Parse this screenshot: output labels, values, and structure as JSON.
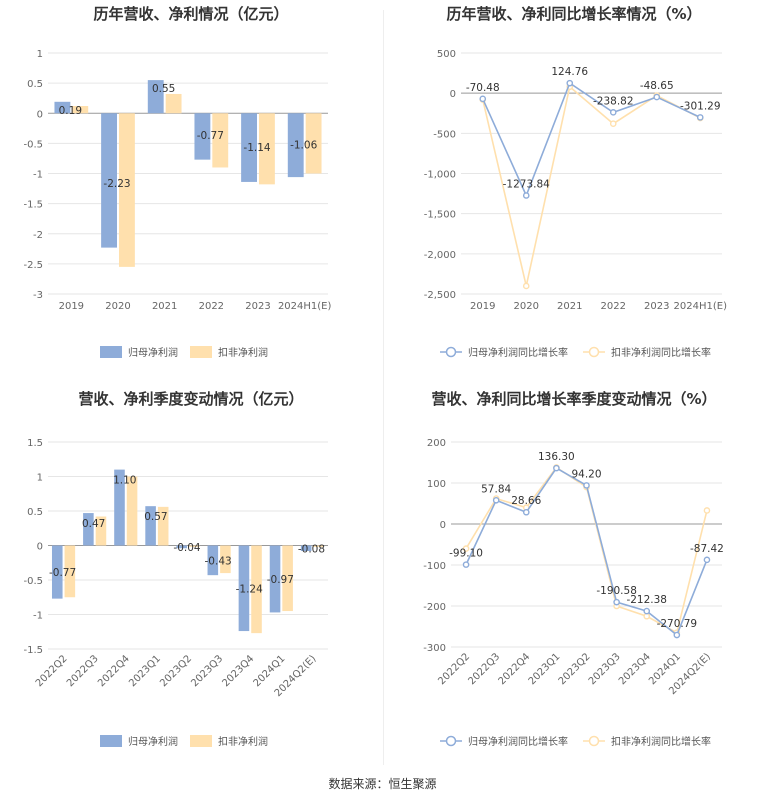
{
  "source": "数据来源：恒生聚源",
  "chart_data": [
    {
      "type": "bar",
      "title": "历年营收、净利情况（亿元）",
      "categories": [
        "2019",
        "2020",
        "2021",
        "2022",
        "2023",
        "2024H1(E)"
      ],
      "series": [
        {
          "name": "归母净利润",
          "values": [
            0.19,
            -2.23,
            0.55,
            -0.77,
            -1.14,
            -1.06
          ],
          "color": "#8eacd9",
          "labels": [
            "0.19",
            "-2.23",
            "0.55",
            "-0.77",
            "-1.14",
            "-1.06"
          ]
        },
        {
          "name": "扣非净利润",
          "values": [
            0.12,
            -2.55,
            0.32,
            -0.9,
            -1.18,
            -1.0
          ],
          "color": "#ffe0ad"
        }
      ],
      "ylim": [
        -3,
        1
      ],
      "yticks": [
        1,
        0.5,
        0,
        -0.5,
        -1,
        -1.5,
        -2,
        -2.5,
        -3
      ],
      "ytick_labels": [
        "1",
        "0.5",
        "0",
        "-0.5",
        "-1",
        "-1.5",
        "-2",
        "-2.5",
        "-3"
      ],
      "legend": "bottom",
      "grid": true
    },
    {
      "type": "line",
      "title": "历年营收、净利同比增长率情况（%）",
      "categories": [
        "2019",
        "2020",
        "2021",
        "2022",
        "2023",
        "2024H1(E)"
      ],
      "series": [
        {
          "name": "归母净利润同比增长率",
          "values": [
            -70.48,
            -1273.84,
            124.76,
            -238.82,
            -48.65,
            -301.29
          ],
          "color": "#8eacd9",
          "labels": [
            "-70.48",
            "-1273.84",
            "124.76",
            "-238.82",
            "-48.65",
            "-301.29"
          ]
        },
        {
          "name": "扣非净利润同比增长率",
          "values": [
            -80,
            -2400,
            80,
            -380,
            -30,
            -310
          ],
          "color": "#ffe0ad"
        }
      ],
      "ylim": [
        -2500,
        500
      ],
      "yticks": [
        500,
        0,
        -500,
        -1000,
        -1500,
        -2000,
        -2500
      ],
      "ytick_labels": [
        "500",
        "0",
        "-500",
        "-1,000",
        "-1,500",
        "-2,000",
        "-2,500"
      ],
      "legend": "bottom",
      "grid": true
    },
    {
      "type": "bar",
      "title": "营收、净利季度变动情况（亿元）",
      "categories": [
        "2022Q2",
        "2022Q3",
        "2022Q4",
        "2023Q1",
        "2023Q2",
        "2023Q3",
        "2023Q4",
        "2024Q1",
        "2024Q2(E)"
      ],
      "series": [
        {
          "name": "归母净利润",
          "values": [
            -0.77,
            0.47,
            1.1,
            0.57,
            -0.04,
            -0.43,
            -1.24,
            -0.97,
            -0.08
          ],
          "color": "#8eacd9",
          "labels": [
            "-0.77",
            "0.47",
            "1.10",
            "0.57",
            "-0.04",
            "-0.43",
            "-1.24",
            "-0.97",
            "-0.08"
          ]
        },
        {
          "name": "扣非净利润",
          "values": [
            -0.75,
            0.42,
            1.0,
            0.56,
            -0.02,
            -0.4,
            -1.27,
            -0.95,
            -0.02
          ],
          "color": "#ffe0ad"
        }
      ],
      "ylim": [
        -1.5,
        1.5
      ],
      "yticks": [
        1.5,
        1,
        0.5,
        0,
        -0.5,
        -1,
        -1.5
      ],
      "ytick_labels": [
        "1.5",
        "1",
        "0.5",
        "0",
        "-0.5",
        "-1",
        "-1.5"
      ],
      "legend": "bottom",
      "grid": true
    },
    {
      "type": "line",
      "title": "营收、净利同比增长率季度变动情况（%）",
      "categories": [
        "2022Q2",
        "2022Q3",
        "2022Q4",
        "2023Q1",
        "2023Q2",
        "2023Q3",
        "2023Q4",
        "2024Q1",
        "2024Q2(E)"
      ],
      "series": [
        {
          "name": "归母净利润同比增长率",
          "values": [
            -99.1,
            57.84,
            28.66,
            136.3,
            94.2,
            -190.58,
            -212.38,
            -270.79,
            -87.42
          ],
          "color": "#8eacd9",
          "labels": [
            "-99.10",
            "57.84",
            "28.66",
            "136.30",
            "94.20",
            "-190.58",
            "-212.38",
            "-270.79",
            "-87.42"
          ]
        },
        {
          "name": "扣非净利润同比增长率",
          "values": [
            -60,
            62,
            40,
            138,
            90,
            -200,
            -225,
            -265,
            33
          ],
          "color": "#ffe0ad"
        }
      ],
      "ylim": [
        -300,
        200
      ],
      "yticks": [
        200,
        100,
        0,
        -100,
        -200,
        -300
      ],
      "ytick_labels": [
        "200",
        "100",
        "0",
        "-100",
        "-200",
        "-300"
      ],
      "legend": "bottom",
      "grid": true
    }
  ]
}
